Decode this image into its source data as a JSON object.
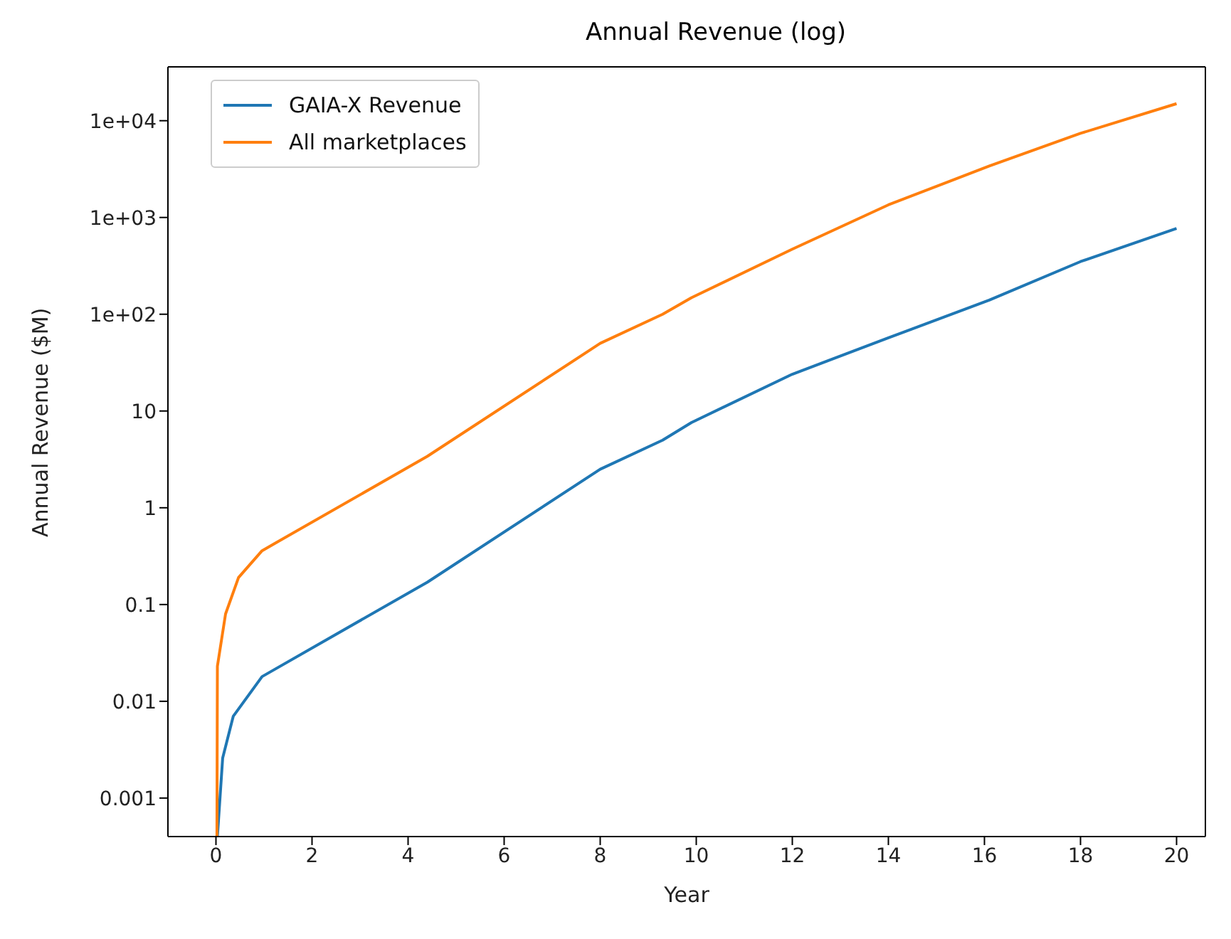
{
  "chart_data": {
    "type": "line",
    "title": "Annual Revenue (log)",
    "xlabel": "Year",
    "ylabel": "Annual Revenue ($M)",
    "log": "y",
    "xlim": [
      -1,
      20.6
    ],
    "xticks": [
      0,
      2,
      4,
      6,
      8,
      10,
      12,
      14,
      16,
      18,
      20
    ],
    "ylim": [
      0.0004,
      36000
    ],
    "yticks": [
      0.001,
      0.01,
      0.1,
      1,
      10,
      {
        "value": 100,
        "label": "1e+02"
      },
      {
        "value": 1000,
        "label": "1e+03"
      },
      {
        "value": 10000,
        "label": "1e+04"
      }
    ],
    "grid": false,
    "legend": "top left",
    "marker": "none",
    "line_style": "solid",
    "series": [
      {
        "name": "GAIA-X Revenue",
        "color": "#1f77b4",
        "x": [
          0.03,
          0.14,
          0.36,
          0.96,
          4.4,
          8,
          9.3,
          9.9,
          12,
          14,
          16.1,
          18,
          20
        ],
        "values": [
          0.0004,
          0.0026,
          0.007,
          0.018,
          0.17,
          2.5,
          5,
          7.6,
          24,
          57,
          140,
          350,
          770
        ]
      },
      {
        "name": "All marketplaces",
        "color": "#ff7f0e",
        "x": [
          0.02,
          0.03,
          0.2,
          0.47,
          0.96,
          4.4,
          8,
          9.3,
          9.9,
          12,
          14,
          16.1,
          18,
          20
        ],
        "values": [
          0.0004,
          0.023,
          0.08,
          0.19,
          0.36,
          3.4,
          50,
          100,
          148,
          470,
          1350,
          3400,
          7400,
          15000
        ]
      }
    ]
  }
}
